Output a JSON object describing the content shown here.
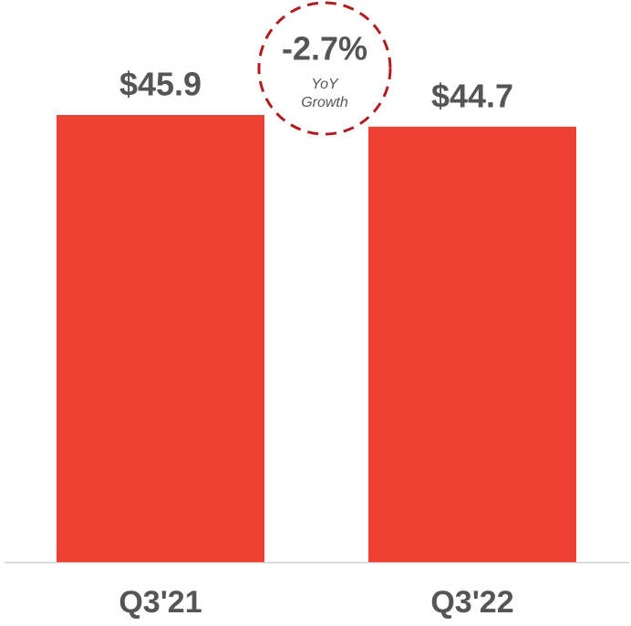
{
  "chart_data": {
    "type": "bar",
    "categories": [
      "Q3'21",
      "Q3'22"
    ],
    "values": [
      45.9,
      44.7
    ],
    "value_labels": [
      "$45.9",
      "$44.7"
    ],
    "color": "#ec4034",
    "annotations": [
      "-2.7%",
      "YoY",
      "Growth"
    ]
  }
}
